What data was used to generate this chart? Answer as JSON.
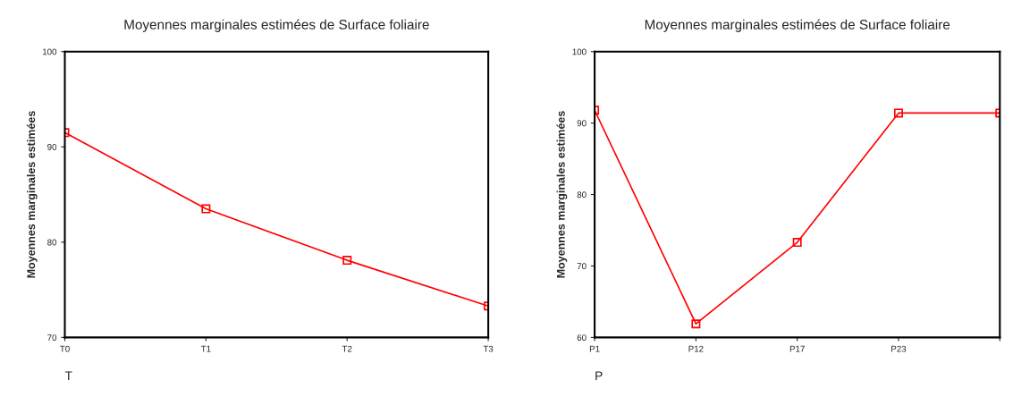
{
  "chart_data": [
    {
      "type": "line",
      "title": "Moyennes marginales estimées de Surface foliaire",
      "xlabel": "T",
      "ylabel": "Moyennes marginales estimées",
      "categories": [
        "T0",
        "T1",
        "T2",
        "T3"
      ],
      "series": [
        {
          "color": "#ff0000",
          "values": [
            91.5,
            83.5,
            78.1,
            73.3
          ]
        }
      ],
      "ylim": [
        70,
        100
      ],
      "yticks": [
        70,
        80,
        90,
        100
      ],
      "marker": "square",
      "grid": false
    },
    {
      "type": "line",
      "title": "Moyennes marginales estimées de Surface foliaire",
      "xlabel": "P",
      "ylabel": "Moyennes marginales estimées",
      "categories": [
        "P1",
        "P12",
        "P17",
        "P23",
        null
      ],
      "series": [
        {
          "color": "#ff0000",
          "values": [
            91.8,
            61.9,
            73.3,
            91.4,
            91.4
          ]
        }
      ],
      "ylim": [
        60,
        100
      ],
      "yticks": [
        60,
        70,
        80,
        90,
        100
      ],
      "marker": "square",
      "grid": false
    }
  ]
}
